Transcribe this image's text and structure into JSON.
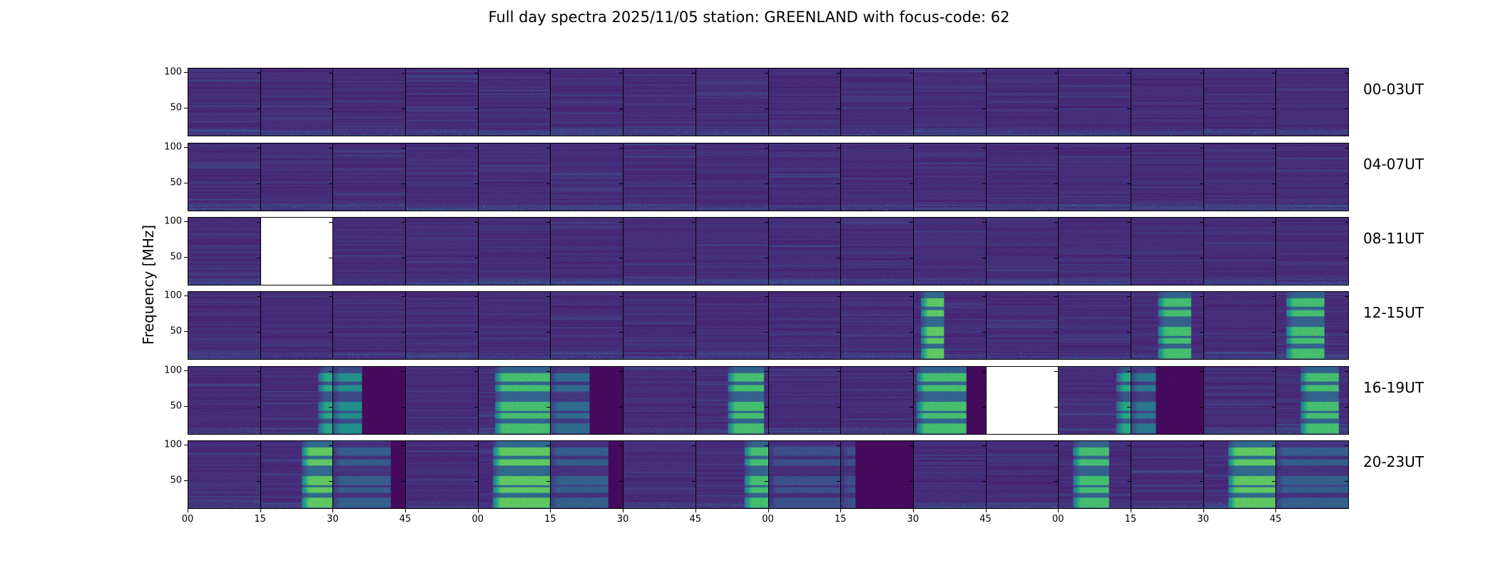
{
  "chart_data": {
    "type": "heatmap",
    "title": "Full day spectra 2025/11/05 station: GREENLAND with focus-code: 62",
    "ylabel": "Frequency [MHz]",
    "xlabel": "",
    "ylim": [
      10,
      106
    ],
    "yticks": [
      100,
      50
    ],
    "yticklabels": [
      "100",
      "50"
    ],
    "xticklabels": [
      "00",
      "15",
      "30",
      "45",
      "00",
      "15",
      "30",
      "45",
      "00",
      "15",
      "30",
      "45",
      "00",
      "15",
      "30",
      "45"
    ],
    "colormap": "viridis",
    "panels_per_row": 16,
    "panel_minutes": 15,
    "rows": [
      {
        "label": "00-03UT",
        "missing": [],
        "bursts": [],
        "dark": []
      },
      {
        "label": "04-07UT",
        "missing": [],
        "bursts": [],
        "dark": []
      },
      {
        "label": "08-11UT",
        "missing": [
          1
        ],
        "bursts": [],
        "dark": []
      },
      {
        "label": "12-15UT",
        "missing": [],
        "bursts": [
          {
            "panel": 10,
            "start": 1.4,
            "end": 6.3,
            "level": 0.75
          },
          {
            "panel": 13,
            "start": 5.5,
            "end": 12.4,
            "level": 0.7
          },
          {
            "panel": 15,
            "start": 2,
            "end": 10,
            "level": 0.7
          }
        ],
        "dark": []
      },
      {
        "label": "16-19UT",
        "missing": [
          11
        ],
        "bursts": [
          {
            "panel": 1,
            "start": 12,
            "end": 15,
            "level": 0.6
          },
          {
            "panel": 2,
            "start": 0,
            "end": 6,
            "level": 0.5
          },
          {
            "panel": 4,
            "start": 3.4,
            "end": 15,
            "level": 0.7
          },
          {
            "panel": 5,
            "start": 0,
            "end": 8,
            "level": 0.35
          },
          {
            "panel": 7,
            "start": 6.5,
            "end": 14,
            "level": 0.7
          },
          {
            "panel": 10,
            "start": 0.6,
            "end": 10.8,
            "level": 0.7
          },
          {
            "panel": 12,
            "start": 12,
            "end": 15,
            "level": 0.6
          },
          {
            "panel": 13,
            "start": 0,
            "end": 5,
            "level": 0.4
          },
          {
            "panel": 15,
            "start": 5,
            "end": 13,
            "level": 0.7
          }
        ],
        "dark": [
          {
            "panel": 2,
            "start": 6,
            "end": 15
          },
          {
            "panel": 5,
            "start": 8,
            "end": 15
          },
          {
            "panel": 10,
            "start": 10.8,
            "end": 15
          },
          {
            "panel": 13,
            "start": 5,
            "end": 15
          }
        ]
      },
      {
        "label": "20-23UT",
        "missing": [],
        "bursts": [
          {
            "panel": 1,
            "start": 8.5,
            "end": 15,
            "level": 0.75
          },
          {
            "panel": 2,
            "start": 0,
            "end": 12,
            "level": 0.3
          },
          {
            "panel": 4,
            "start": 3,
            "end": 15,
            "level": 0.75
          },
          {
            "panel": 5,
            "start": 0,
            "end": 12,
            "level": 0.3
          },
          {
            "panel": 7,
            "start": 10,
            "end": 15,
            "level": 0.7
          },
          {
            "panel": 8,
            "start": 0,
            "end": 15,
            "level": 0.25
          },
          {
            "panel": 9,
            "start": 0,
            "end": 3,
            "level": 0.25
          },
          {
            "panel": 12,
            "start": 3,
            "end": 10.5,
            "level": 0.7
          },
          {
            "panel": 14,
            "start": 5,
            "end": 15,
            "level": 0.75
          },
          {
            "panel": 15,
            "start": 0,
            "end": 15,
            "level": 0.3
          }
        ],
        "dark": [
          {
            "panel": 2,
            "start": 12,
            "end": 15
          },
          {
            "panel": 5,
            "start": 12,
            "end": 15
          },
          {
            "panel": 9,
            "start": 3,
            "end": 15
          }
        ]
      }
    ]
  }
}
